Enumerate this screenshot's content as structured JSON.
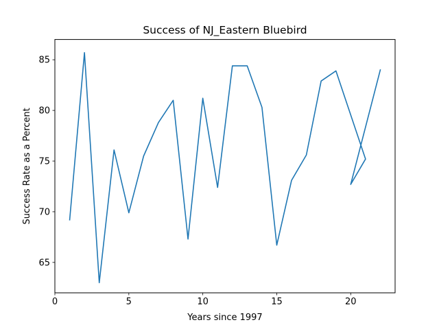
{
  "chart_data": {
    "type": "line",
    "title": "Success of NJ_Eastern Bluebird",
    "xlabel": "Years since 1997",
    "ylabel": "Success Rate as a Percent",
    "xlim": [
      0,
      23
    ],
    "ylim": [
      62,
      87
    ],
    "xticks": [
      0,
      5,
      10,
      15,
      20
    ],
    "yticks": [
      65,
      70,
      75,
      80,
      85
    ],
    "grid": false,
    "legend": "none",
    "series": [
      {
        "color": "#1f77b4",
        "x": [
          1,
          2,
          3,
          4,
          5,
          6,
          7,
          8,
          9,
          10,
          11,
          12,
          13,
          14,
          15,
          16,
          17,
          18,
          19,
          21,
          20,
          22
        ],
        "y": [
          69.2,
          85.7,
          63.0,
          76.1,
          69.9,
          75.5,
          78.8,
          81.0,
          67.3,
          81.2,
          72.4,
          84.4,
          84.4,
          80.3,
          66.7,
          73.1,
          75.6,
          82.9,
          83.9,
          75.2,
          72.7,
          84.0
        ]
      }
    ]
  }
}
